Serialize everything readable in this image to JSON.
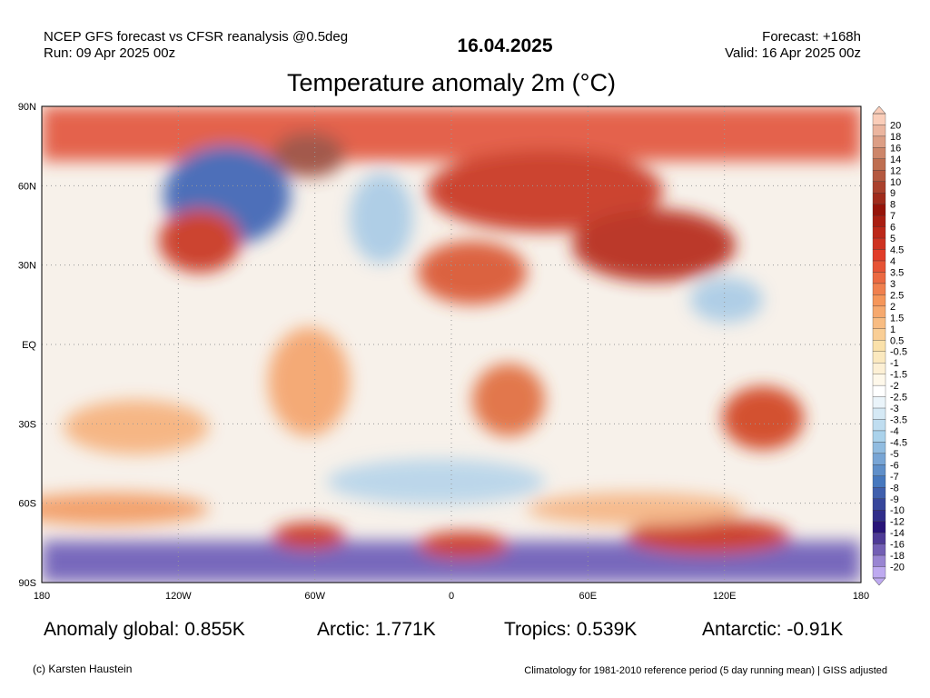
{
  "header": {
    "left_line1": "NCEP GFS forecast vs CFSR reanalysis @0.5deg",
    "left_line2": "Run: 09 Apr 2025 00z",
    "date": "16.04.2025",
    "right_line1": "Forecast: +168h",
    "right_line2": "Valid: 16 Apr 2025 00z",
    "title": "Temperature anomaly 2m (°C)"
  },
  "map": {
    "lat_labels": [
      "90N",
      "60N",
      "30N",
      "EQ",
      "30S",
      "60S",
      "90S"
    ],
    "lon_labels": [
      "180",
      "120W",
      "60W",
      "0",
      "60E",
      "120E",
      "180"
    ]
  },
  "colorbar": {
    "labels": [
      "20",
      "18",
      "16",
      "14",
      "12",
      "10",
      "9",
      "8",
      "7",
      "6",
      "5",
      "4.5",
      "4",
      "3.5",
      "3",
      "2.5",
      "2",
      "1.5",
      "1",
      "0.5",
      "-0.5",
      "-1",
      "-1.5",
      "-2",
      "-2.5",
      "-3",
      "-3.5",
      "-4",
      "-4.5",
      "-5",
      "-6",
      "-7",
      "-8",
      "-9",
      "-10",
      "-12",
      "-14",
      "-16",
      "-18",
      "-20"
    ]
  },
  "stats": [
    "Anomaly global: 0.855K",
    "Arctic: 1.771K",
    "Tropics: 0.539K",
    "Antarctic: -0.91K"
  ],
  "footer": {
    "left": "(c) Karsten Haustein",
    "right": "Climatology for 1981-2010 reference period (5 day running mean) | GISS adjusted"
  }
}
